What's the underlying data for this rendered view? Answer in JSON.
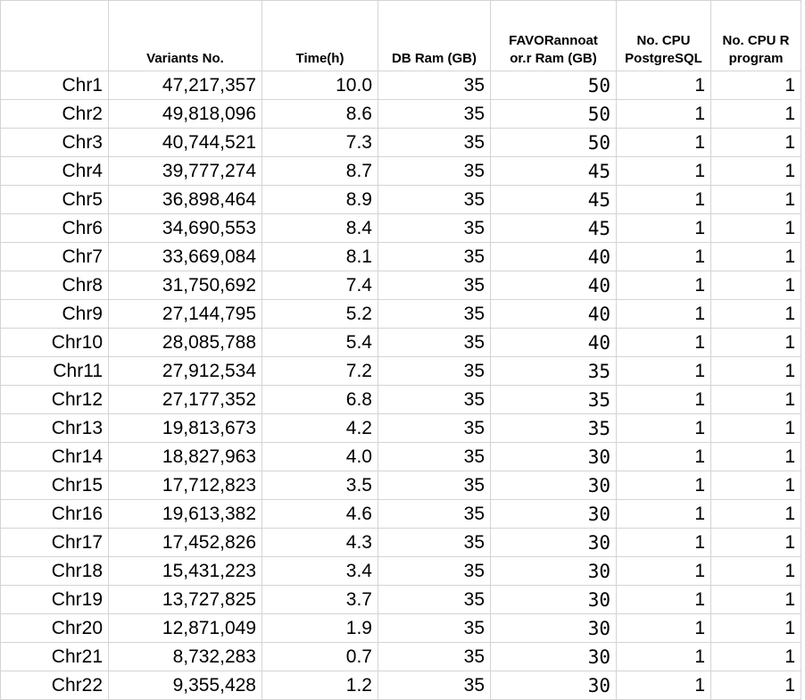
{
  "table": {
    "headers": [
      "",
      "Variants No.",
      "Time(h)",
      "DB Ram (GB)",
      "FAVORannoat or.r Ram (GB)",
      "No. CPU PostgreSQL",
      "No. CPU R program"
    ],
    "header_lines": [
      [
        ""
      ],
      [
        "Variants No."
      ],
      [
        "Time(h)"
      ],
      [
        "DB Ram (GB)"
      ],
      [
        "FAVORannoat",
        "or.r Ram (GB)"
      ],
      [
        "No. CPU",
        "PostgreSQL"
      ],
      [
        "No. CPU  R",
        "program"
      ]
    ],
    "rows": [
      [
        "Chr1",
        "47,217,357",
        "10.0",
        "35",
        "50",
        "1",
        "1"
      ],
      [
        "Chr2",
        "49,818,096",
        "8.6",
        "35",
        "50",
        "1",
        "1"
      ],
      [
        "Chr3",
        "40,744,521",
        "7.3",
        "35",
        "50",
        "1",
        "1"
      ],
      [
        "Chr4",
        "39,777,274",
        "8.7",
        "35",
        "45",
        "1",
        "1"
      ],
      [
        "Chr5",
        "36,898,464",
        "8.9",
        "35",
        "45",
        "1",
        "1"
      ],
      [
        "Chr6",
        "34,690,553",
        "8.4",
        "35",
        "45",
        "1",
        "1"
      ],
      [
        "Chr7",
        "33,669,084",
        "8.1",
        "35",
        "40",
        "1",
        "1"
      ],
      [
        "Chr8",
        "31,750,692",
        "7.4",
        "35",
        "40",
        "1",
        "1"
      ],
      [
        "Chr9",
        "27,144,795",
        "5.2",
        "35",
        "40",
        "1",
        "1"
      ],
      [
        "Chr10",
        "28,085,788",
        "5.4",
        "35",
        "40",
        "1",
        "1"
      ],
      [
        "Chr11",
        "27,912,534",
        "7.2",
        "35",
        "35",
        "1",
        "1"
      ],
      [
        "Chr12",
        "27,177,352",
        "6.8",
        "35",
        "35",
        "1",
        "1"
      ],
      [
        "Chr13",
        "19,813,673",
        "4.2",
        "35",
        "35",
        "1",
        "1"
      ],
      [
        "Chr14",
        "18,827,963",
        "4.0",
        "35",
        "30",
        "1",
        "1"
      ],
      [
        "Chr15",
        "17,712,823",
        "3.5",
        "35",
        "30",
        "1",
        "1"
      ],
      [
        "Chr16",
        "19,613,382",
        "4.6",
        "35",
        "30",
        "1",
        "1"
      ],
      [
        "Chr17",
        "17,452,826",
        "4.3",
        "35",
        "30",
        "1",
        "1"
      ],
      [
        "Chr18",
        "15,431,223",
        "3.4",
        "35",
        "30",
        "1",
        "1"
      ],
      [
        "Chr19",
        "13,727,825",
        "3.7",
        "35",
        "30",
        "1",
        "1"
      ],
      [
        "Chr20",
        "12,871,049",
        "1.9",
        "35",
        "30",
        "1",
        "1"
      ],
      [
        "Chr21",
        "8,732,283",
        "0.7",
        "35",
        "30",
        "1",
        "1"
      ],
      [
        "Chr22",
        "9,355,428",
        "1.2",
        "35",
        "30",
        "1",
        "1"
      ]
    ]
  }
}
